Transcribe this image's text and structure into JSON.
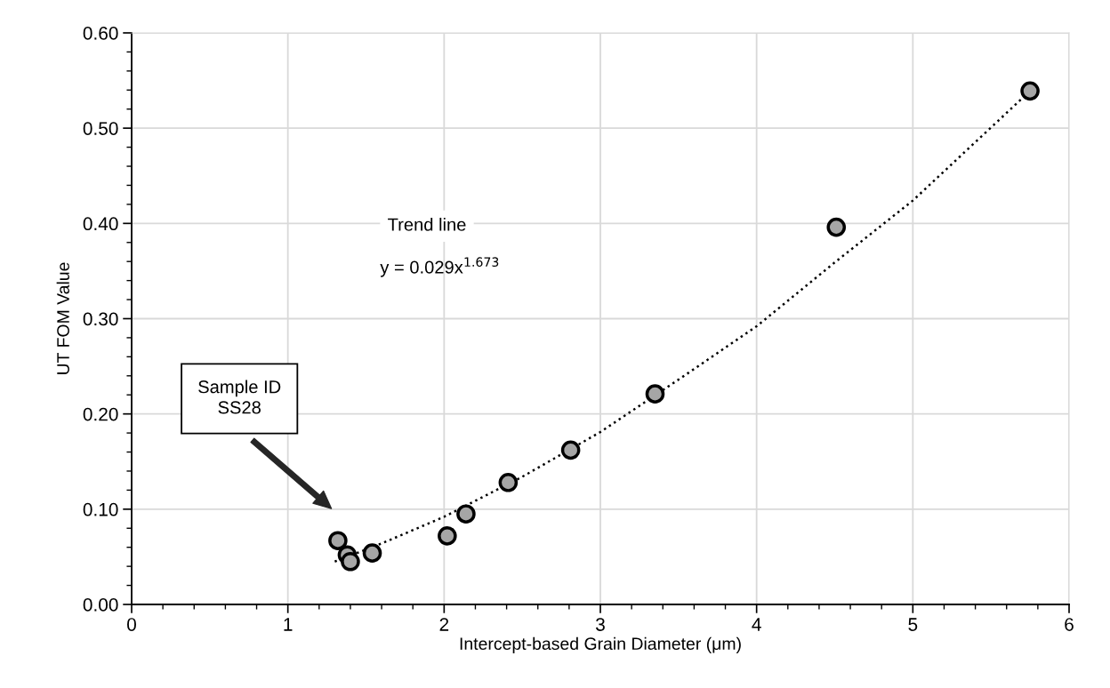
{
  "chart_data": {
    "type": "scatter",
    "xlabel": "Intercept-based Grain Diameter (μm)",
    "ylabel": "UT FOM Value",
    "xlim": [
      0,
      6
    ],
    "xticks": [
      0,
      1,
      2,
      3,
      4,
      5,
      6
    ],
    "ylim": [
      0,
      0.6
    ],
    "yticks": [
      {
        "value": 0,
        "label": "0.00"
      },
      {
        "value": 0.1,
        "label": "0.10"
      },
      {
        "value": 0.2,
        "label": "0.20"
      },
      {
        "value": 0.3,
        "label": "0.30"
      },
      {
        "value": 0.4,
        "label": "0.40"
      },
      {
        "value": 0.5,
        "label": "0.50"
      },
      {
        "value": 0.6,
        "label": "0.60"
      }
    ],
    "grid": true,
    "marker": "circle",
    "series": [
      {
        "color": "#a6a6a6",
        "x": [
          1.32,
          1.38,
          1.4,
          1.54,
          2.02,
          2.14,
          2.41,
          2.81,
          3.35,
          4.51,
          5.75
        ],
        "values": [
          0.067,
          0.052,
          0.045,
          0.054,
          0.072,
          0.095,
          0.128,
          0.162,
          0.221,
          0.396,
          0.539
        ]
      },
      {
        "type": "line",
        "color": "#000000",
        "line_style": "dotted",
        "marker": "none",
        "x": [
          1.3,
          1.6,
          2,
          2.5,
          3,
          3.5,
          4,
          4.5,
          5,
          5.75
        ],
        "values": [
          0.045,
          0.064,
          0.092,
          0.134,
          0.181,
          0.236,
          0.292,
          0.359,
          0.424,
          0.539
        ]
      }
    ],
    "annotations": [
      "Trend line",
      "y = 0.029x$^{1.673}$",
      "Sample ID\nSS28"
    ]
  }
}
